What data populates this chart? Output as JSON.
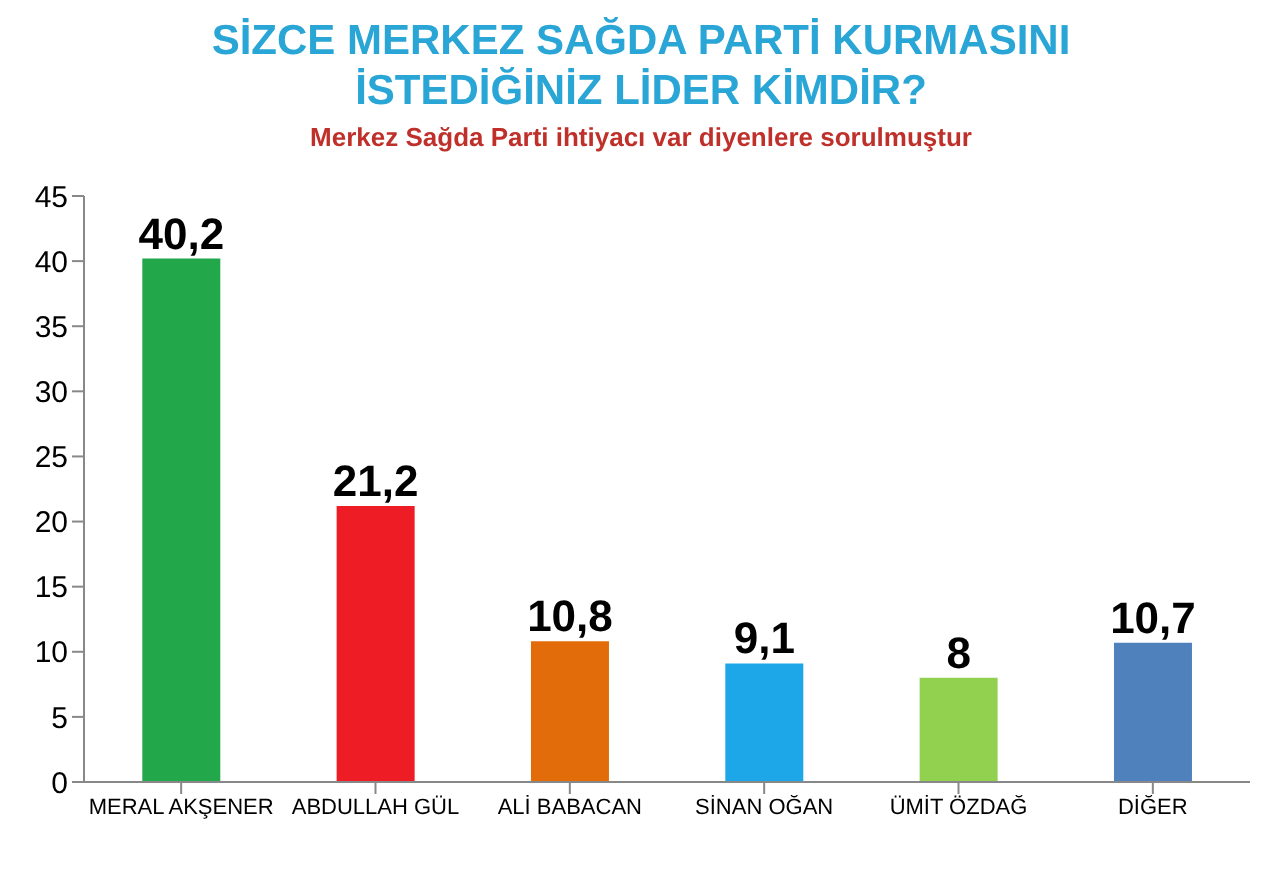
{
  "chart_data": {
    "type": "bar",
    "title": "SİZCE MERKEZ SAĞDA PARTİ KURMASINI İSTEDİĞİNİZ LİDER KİMDİR?",
    "subtitle": "Merkez Sağda Parti ihtiyacı var diyenlere sorulmuştur",
    "categories": [
      "MERAL AKŞENER",
      "ABDULLAH GÜL",
      "ALİ BABACAN",
      "SİNAN OĞAN",
      "ÜMİT ÖZDAĞ",
      "DİĞER"
    ],
    "values": [
      40.2,
      21.2,
      10.8,
      9.1,
      8,
      10.7
    ],
    "value_labels": [
      "40,2",
      "21,2",
      "10,8",
      "9,1",
      "8",
      "10,7"
    ],
    "colors": [
      "#22a84a",
      "#ee1c24",
      "#e36c0a",
      "#1ea7e8",
      "#92d050",
      "#4f81bd"
    ],
    "ylim": [
      0,
      45
    ],
    "yticks": [
      0,
      5,
      10,
      15,
      20,
      25,
      30,
      35,
      40,
      45
    ],
    "grid": false,
    "legend": false
  }
}
